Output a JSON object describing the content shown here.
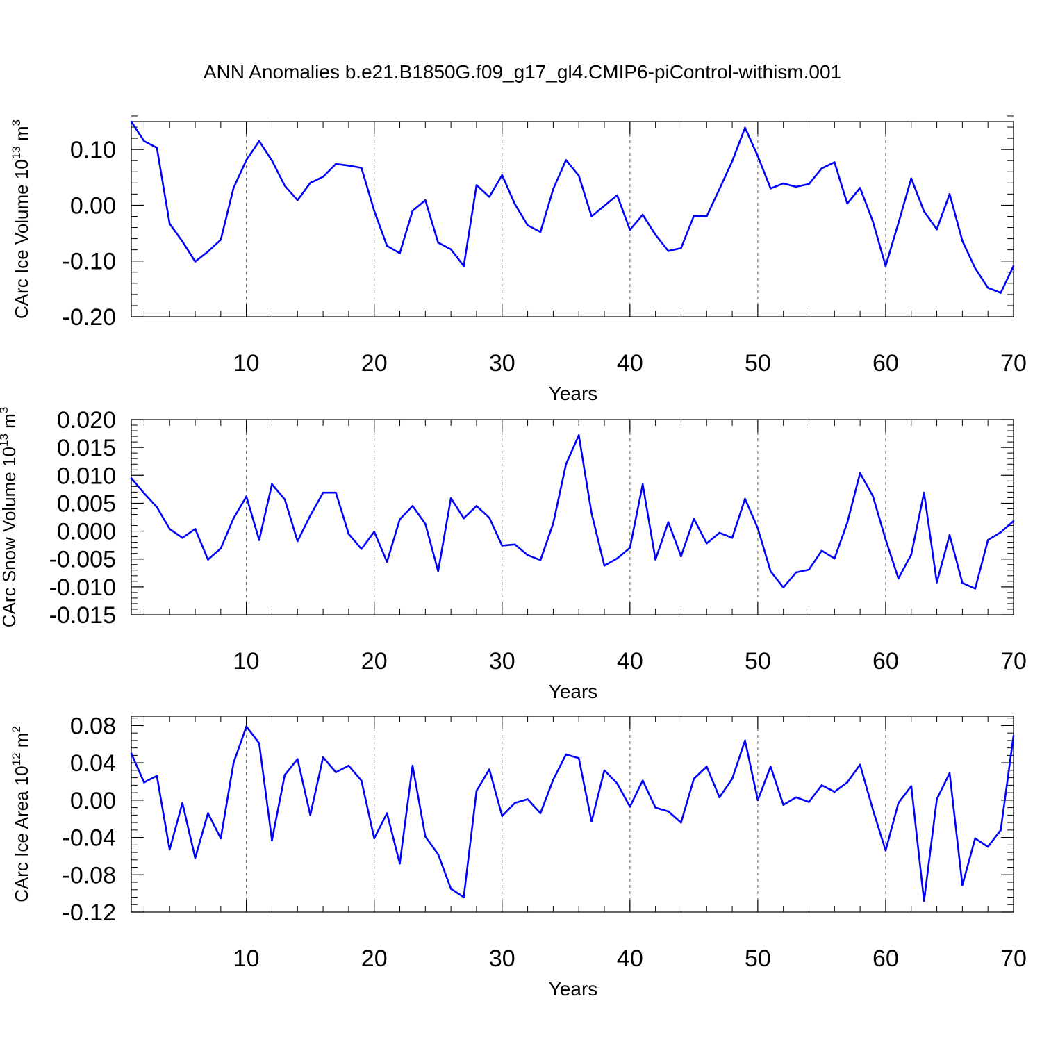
{
  "figure": {
    "title": "ANN Anomalies b.e21.B1850G.f09_g17_gl4.CMIP6-piControl-withism.001"
  },
  "colors": {
    "line": "#0000ff",
    "axis": "#000000",
    "grid": "#555555",
    "background": "#ffffff"
  },
  "chart_data": [
    {
      "type": "line",
      "ylabel": "CArc Ice Volume 10",
      "ylabel_exp": "13",
      "ylabel_unit": " m",
      "ylabel_unit_exp": "3",
      "xlabel": "Years",
      "xlim": [
        1,
        70
      ],
      "ylim": [
        -0.2,
        0.15
      ],
      "xticks": [
        10,
        20,
        30,
        40,
        50,
        60,
        70
      ],
      "yticks": [
        -0.2,
        -0.1,
        0.0,
        0.1
      ],
      "ytick_labels": [
        "-0.20",
        "-0.10",
        "0.00",
        "0.10"
      ],
      "yminor_step": 0.02,
      "grid": "vertical dashed at major x ticks",
      "x": [
        1,
        2,
        3,
        4,
        5,
        6,
        7,
        8,
        9,
        10,
        11,
        12,
        13,
        14,
        15,
        16,
        17,
        18,
        19,
        20,
        21,
        22,
        23,
        24,
        25,
        26,
        27,
        28,
        29,
        30,
        31,
        32,
        33,
        34,
        35,
        36,
        37,
        38,
        39,
        40,
        41,
        42,
        43,
        44,
        45,
        46,
        47,
        48,
        49,
        50,
        51,
        52,
        53,
        54,
        55,
        56,
        57,
        58,
        59,
        60,
        61,
        62,
        63,
        64,
        65,
        66,
        67,
        68,
        69,
        70
      ],
      "values": [
        0.15,
        0.115,
        0.103,
        -0.033,
        -0.065,
        -0.101,
        -0.083,
        -0.062,
        0.031,
        0.081,
        0.115,
        0.08,
        0.035,
        0.009,
        0.04,
        0.051,
        0.074,
        0.071,
        0.067,
        -0.01,
        -0.073,
        -0.086,
        -0.01,
        0.009,
        -0.067,
        -0.079,
        -0.109,
        0.036,
        0.015,
        0.054,
        0.002,
        -0.036,
        -0.048,
        0.029,
        0.081,
        0.053,
        -0.02,
        -0.001,
        0.018,
        -0.044,
        -0.017,
        -0.053,
        -0.082,
        -0.077,
        -0.019,
        -0.02,
        0.029,
        0.079,
        0.139,
        0.088,
        0.03,
        0.039,
        0.033,
        0.038,
        0.066,
        0.077,
        0.003,
        0.031,
        -0.029,
        -0.109,
        -0.032,
        0.048,
        -0.011,
        -0.043,
        0.02,
        -0.064,
        -0.113,
        -0.148,
        -0.157,
        -0.109
      ]
    },
    {
      "type": "line",
      "ylabel": "CArc Snow Volume 10",
      "ylabel_exp": "13",
      "ylabel_unit": " m",
      "ylabel_unit_exp": "3",
      "xlabel": "Years",
      "xlim": [
        1,
        70
      ],
      "ylim": [
        -0.015,
        0.02
      ],
      "xticks": [
        10,
        20,
        30,
        40,
        50,
        60,
        70
      ],
      "yticks": [
        -0.015,
        -0.01,
        -0.005,
        0.0,
        0.005,
        0.01,
        0.015,
        0.02
      ],
      "ytick_labels": [
        "-0.015",
        "-0.010",
        "-0.005",
        "0.000",
        "0.005",
        "0.010",
        "0.015",
        "0.020"
      ],
      "yminor_step": 0.001,
      "grid": "vertical dashed at major x ticks",
      "x": [
        1,
        2,
        3,
        4,
        5,
        6,
        7,
        8,
        9,
        10,
        11,
        12,
        13,
        14,
        15,
        16,
        17,
        18,
        19,
        20,
        21,
        22,
        23,
        24,
        25,
        26,
        27,
        28,
        29,
        30,
        31,
        32,
        33,
        34,
        35,
        36,
        37,
        38,
        39,
        40,
        41,
        42,
        43,
        44,
        45,
        46,
        47,
        48,
        49,
        50,
        51,
        52,
        53,
        54,
        55,
        56,
        57,
        58,
        59,
        60,
        61,
        62,
        63,
        64,
        65,
        66,
        67,
        68,
        69,
        70
      ],
      "values": [
        0.0095,
        0.0068,
        0.0043,
        0.0004,
        -0.0012,
        0.0004,
        -0.0051,
        -0.0031,
        0.0023,
        0.0062,
        -0.0016,
        0.0084,
        0.0057,
        -0.0018,
        0.0028,
        0.0069,
        0.0069,
        -0.0005,
        -0.0032,
        -0.0001,
        -0.0055,
        0.0021,
        0.0045,
        0.0013,
        -0.0072,
        0.0059,
        0.0023,
        0.0045,
        0.0024,
        -0.0026,
        -0.0024,
        -0.0043,
        -0.0052,
        0.0014,
        0.012,
        0.0172,
        0.0032,
        -0.0062,
        -0.0049,
        -0.003,
        0.0084,
        -0.0051,
        0.0016,
        -0.0045,
        0.0022,
        -0.0022,
        -0.0003,
        -0.0012,
        0.0058,
        0.0005,
        -0.0072,
        -0.0101,
        -0.0074,
        -0.0069,
        -0.0035,
        -0.0049,
        0.0015,
        0.0104,
        0.0063,
        -0.0015,
        -0.0085,
        -0.0042,
        0.0069,
        -0.0092,
        -0.0007,
        -0.0093,
        -0.0103,
        -0.0016,
        -0.0002,
        0.0018
      ]
    },
    {
      "type": "line",
      "ylabel": "CArc Ice Area 10",
      "ylabel_exp": "12",
      "ylabel_unit": " m",
      "ylabel_unit_exp": "2",
      "xlabel": "Years",
      "xlim": [
        1,
        70
      ],
      "ylim": [
        -0.12,
        0.09
      ],
      "xticks": [
        10,
        20,
        30,
        40,
        50,
        60,
        70
      ],
      "yticks": [
        -0.12,
        -0.08,
        -0.04,
        0.0,
        0.04,
        0.08
      ],
      "ytick_labels": [
        "-0.12",
        "-0.08",
        "-0.04",
        "0.00",
        "0.04",
        "0.08"
      ],
      "yminor_step": 0.008,
      "grid": "vertical dashed at major x ticks",
      "x": [
        1,
        2,
        3,
        4,
        5,
        6,
        7,
        8,
        9,
        10,
        11,
        12,
        13,
        14,
        15,
        16,
        17,
        18,
        19,
        20,
        21,
        22,
        23,
        24,
        25,
        26,
        27,
        28,
        29,
        30,
        31,
        32,
        33,
        34,
        35,
        36,
        37,
        38,
        39,
        40,
        41,
        42,
        43,
        44,
        45,
        46,
        47,
        48,
        49,
        50,
        51,
        52,
        53,
        54,
        55,
        56,
        57,
        58,
        59,
        60,
        61,
        62,
        63,
        64,
        65,
        66,
        67,
        68,
        69,
        70
      ],
      "values": [
        0.05,
        0.019,
        0.026,
        -0.053,
        -0.003,
        -0.062,
        -0.014,
        -0.041,
        0.04,
        0.079,
        0.061,
        -0.043,
        0.027,
        0.044,
        -0.016,
        0.046,
        0.03,
        0.037,
        0.021,
        -0.041,
        -0.014,
        -0.068,
        0.037,
        -0.039,
        -0.058,
        -0.095,
        -0.104,
        0.01,
        0.033,
        -0.017,
        -0.003,
        0.001,
        -0.014,
        0.022,
        0.049,
        0.045,
        -0.023,
        0.032,
        0.018,
        -0.007,
        0.021,
        -0.008,
        -0.012,
        -0.024,
        0.023,
        0.036,
        0.003,
        0.023,
        0.064,
        0.0,
        0.036,
        -0.005,
        0.003,
        -0.002,
        0.016,
        0.009,
        0.019,
        0.038,
        -0.01,
        -0.054,
        -0.003,
        0.015,
        -0.108,
        0.001,
        0.029,
        -0.091,
        -0.041,
        -0.05,
        -0.032,
        0.069
      ]
    }
  ]
}
